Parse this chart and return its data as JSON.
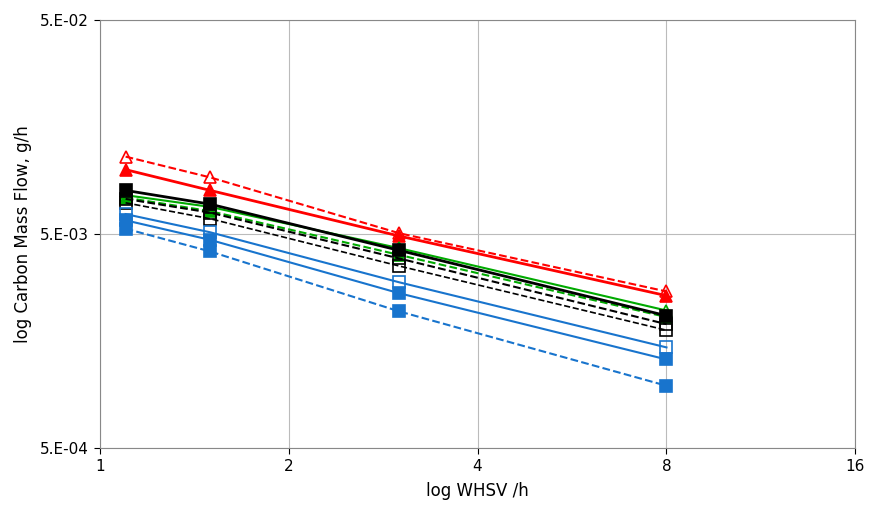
{
  "xlabel": "log WHSV /h",
  "ylabel": "log Carbon Mass Flow, g/h",
  "xlim": [
    1,
    16
  ],
  "ylim": [
    0.0005,
    0.05
  ],
  "xticks": [
    1,
    2,
    4,
    8,
    16
  ],
  "yticks": [
    0.0005,
    0.005,
    0.05
  ],
  "ytick_labels": [
    "5.E-04",
    "5.E-03",
    "5.E-02"
  ],
  "xtick_labels": [
    "1",
    "2",
    "4",
    "8",
    "16"
  ],
  "series": [
    {
      "x": [
        1.1,
        1.5,
        3.0,
        8.0
      ],
      "y": [
        0.0115,
        0.0092,
        0.00505,
        0.0027
      ],
      "color": "#FF0000",
      "linestyle": "--",
      "marker": "^",
      "markerfacecolor": "none",
      "markersize": 9,
      "linewidth": 1.5
    },
    {
      "x": [
        1.1,
        1.5,
        3.0,
        8.0
      ],
      "y": [
        0.01,
        0.008,
        0.0049,
        0.00258
      ],
      "color": "#FF0000",
      "linestyle": "-",
      "marker": "^",
      "markerfacecolor": "#FF0000",
      "markersize": 9,
      "linewidth": 2.0
    },
    {
      "x": [
        1.1,
        1.5,
        3.0,
        8.0
      ],
      "y": [
        0.0076,
        0.0067,
        0.0043,
        0.0022
      ],
      "color": "#00AA00",
      "linestyle": "-",
      "marker": "^",
      "markerfacecolor": "none",
      "markersize": 9,
      "linewidth": 1.5
    },
    {
      "x": [
        1.1,
        1.5,
        3.0,
        8.0
      ],
      "y": [
        0.0074,
        0.0064,
        0.004,
        0.00205
      ],
      "color": "#00AA00",
      "linestyle": "--",
      "marker": "^",
      "markerfacecolor": "#00AA00",
      "markersize": 9,
      "linewidth": 1.5
    },
    {
      "x": [
        1.1,
        1.5,
        3.0,
        8.0
      ],
      "y": [
        0.008,
        0.0069,
        0.0042,
        0.00208
      ],
      "color": "#000000",
      "linestyle": "-",
      "marker": "s",
      "markerfacecolor": "#000000",
      "markersize": 8,
      "linewidth": 2.0
    },
    {
      "x": [
        1.1,
        1.5,
        3.0,
        8.0
      ],
      "y": [
        0.0073,
        0.0063,
        0.00385,
        0.0019
      ],
      "color": "#000000",
      "linestyle": "--",
      "marker": "s",
      "markerfacecolor": "none",
      "markersize": 8,
      "linewidth": 1.5
    },
    {
      "x": [
        1.1,
        1.5,
        3.0,
        8.0
      ],
      "y": [
        0.007,
        0.0059,
        0.00355,
        0.00178
      ],
      "color": "#000000",
      "linestyle": "--",
      "marker": "s",
      "markerfacecolor": "none",
      "markersize": 8,
      "linewidth": 1.2
    },
    {
      "x": [
        1.1,
        1.5,
        3.0,
        8.0
      ],
      "y": [
        0.0062,
        0.0051,
        0.00298,
        0.00148
      ],
      "color": "#1874CD",
      "linestyle": "-",
      "marker": "s",
      "markerfacecolor": "none",
      "markersize": 8,
      "linewidth": 1.5
    },
    {
      "x": [
        1.1,
        1.5,
        3.0,
        8.0
      ],
      "y": [
        0.0058,
        0.0047,
        0.00265,
        0.0013
      ],
      "color": "#1874CD",
      "linestyle": "-",
      "marker": "s",
      "markerfacecolor": "#1874CD",
      "markersize": 8,
      "linewidth": 1.5
    },
    {
      "x": [
        1.1,
        1.5,
        3.0,
        8.0
      ],
      "y": [
        0.0053,
        0.00415,
        0.00218,
        0.00098
      ],
      "color": "#1874CD",
      "linestyle": "--",
      "marker": "s",
      "markerfacecolor": "#1874CD",
      "markersize": 8,
      "linewidth": 1.5
    }
  ],
  "background_color": "#FFFFFF",
  "grid_color": "#BBBBBB",
  "figsize": [
    8.79,
    5.14
  ],
  "dpi": 100
}
